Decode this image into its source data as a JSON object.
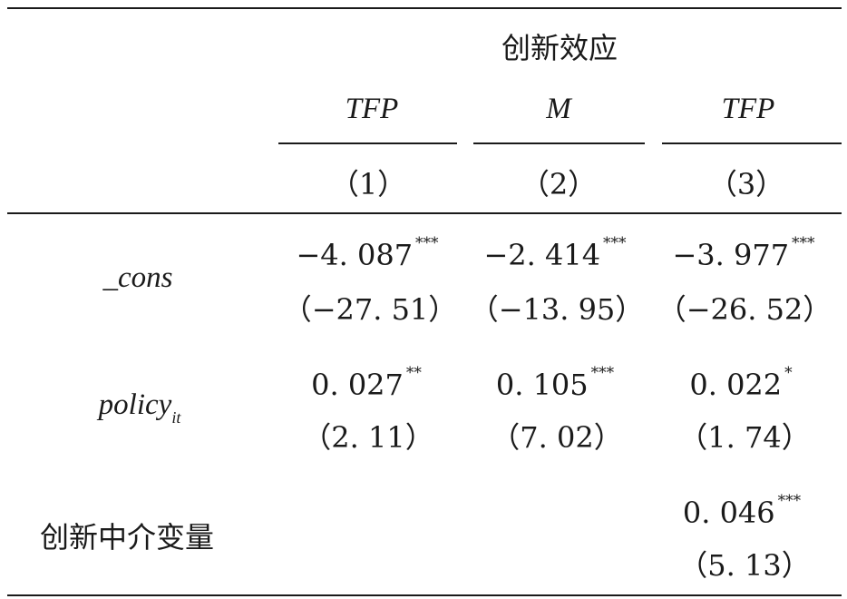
{
  "table": {
    "group_header": "创新效应",
    "columns": [
      {
        "var": "TFP",
        "num": "（1）"
      },
      {
        "var": "M",
        "num": "（2）"
      },
      {
        "var": "TFP",
        "num": "（3）"
      }
    ],
    "rows": [
      {
        "label": "_cons",
        "cells": [
          {
            "coef": "−4. 087",
            "stars": "***",
            "t": "（−27. 51）"
          },
          {
            "coef": "−2. 414",
            "stars": "***",
            "t": "（−13. 95）"
          },
          {
            "coef": "−3. 977",
            "stars": "***",
            "t": "（−26. 52）"
          }
        ]
      },
      {
        "label": "policy",
        "label_sub": "it",
        "cells": [
          {
            "coef": "0. 027",
            "stars": "**",
            "t": "（2. 11）"
          },
          {
            "coef": "0. 105",
            "stars": "***",
            "t": "（7. 02）"
          },
          {
            "coef": "0. 022",
            "stars": "*",
            "t": "（1. 74）"
          }
        ]
      },
      {
        "label": "创新中介变量",
        "cells": [
          {
            "coef": "0. 046",
            "stars": "***",
            "t": "（5. 13）",
            "col": 3
          }
        ]
      }
    ]
  }
}
